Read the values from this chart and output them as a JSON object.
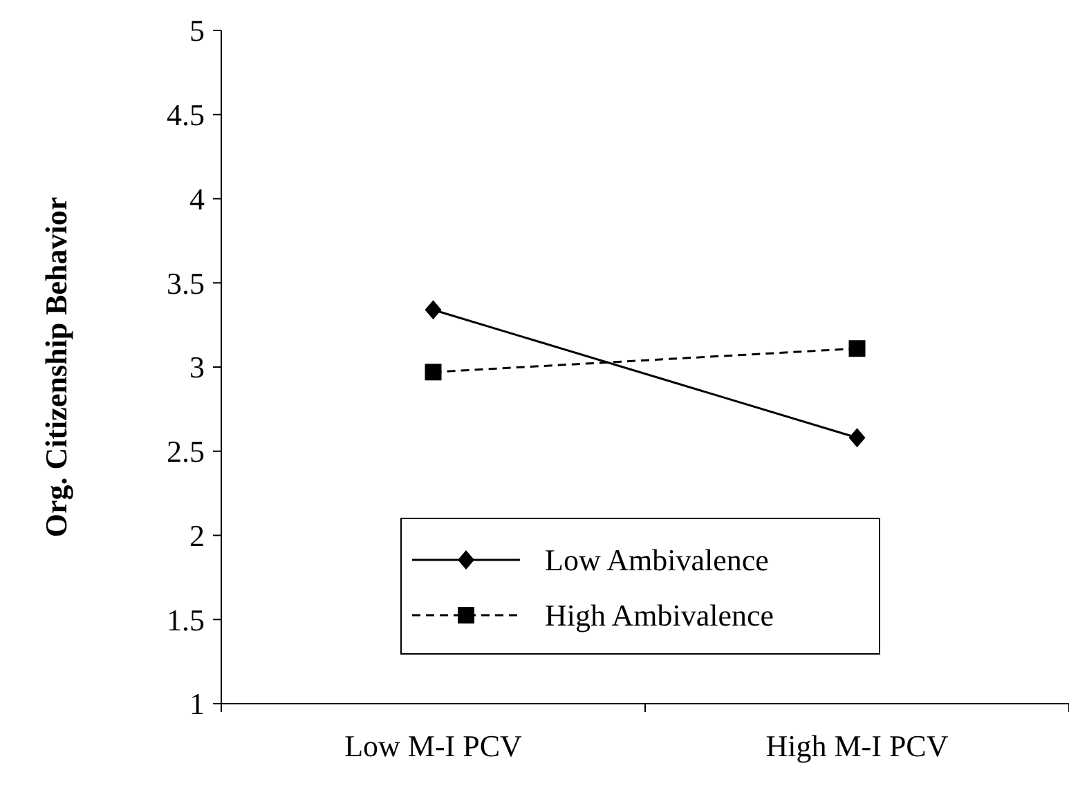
{
  "chart_data": {
    "type": "line",
    "ylabel": "Org. Citizenship Behavior",
    "categories": [
      "Low M-I PCV",
      "High M-I PCV"
    ],
    "series": [
      {
        "name": "Low Ambivalence",
        "color": "#000000",
        "values": [
          3.34,
          2.58
        ],
        "marker": "diamond",
        "line_style": "solid"
      },
      {
        "name": "High Ambivalence",
        "color": "#000000",
        "values": [
          2.97,
          3.11
        ],
        "marker": "square",
        "line_style": "dashed"
      }
    ],
    "ylim": [
      1,
      5
    ],
    "yticks": [
      1,
      1.5,
      2,
      2.5,
      3,
      3.5,
      4,
      4.5,
      5
    ],
    "grid": false,
    "legend": "bottom"
  }
}
